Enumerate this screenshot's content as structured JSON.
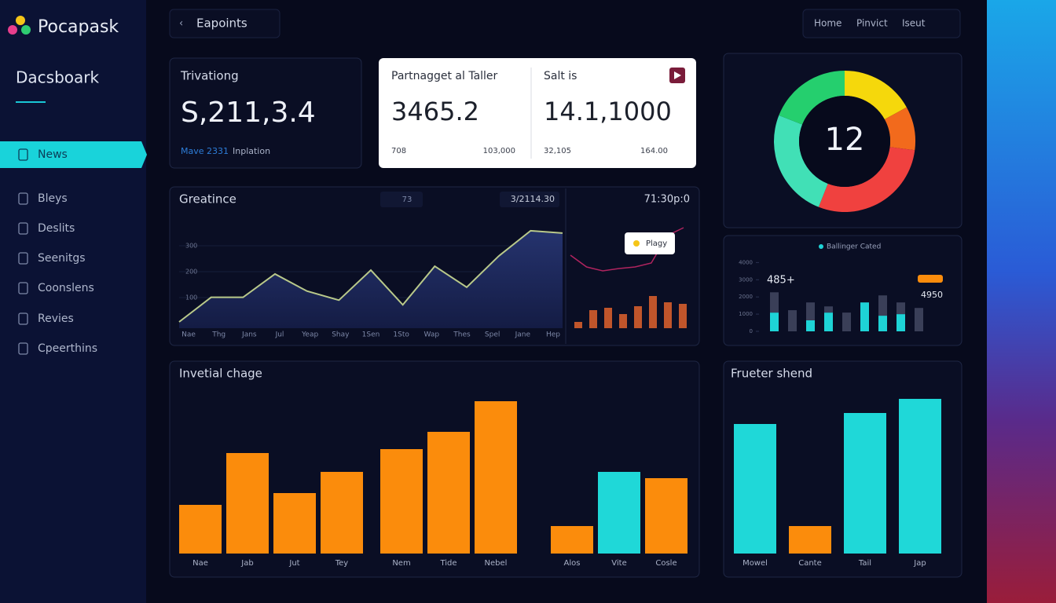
{
  "sidebar": {
    "brand": "Pocapask",
    "heading": "Dacsboark",
    "nav": [
      "News",
      "Bleys",
      "Deslits",
      "Seenitgs",
      "Coonslens",
      "Revies",
      "Cpeerthins"
    ]
  },
  "topbar": {
    "breadcrumb": "Eapoints",
    "links": [
      "Home",
      "Pinvict",
      "Iseut"
    ]
  },
  "stat_card": {
    "title": "Trivationg",
    "value": "S,211,3.4",
    "note": [
      "Mave 2331",
      "Inplation"
    ]
  },
  "kpis": [
    {
      "title": "Partnagget al Taller",
      "value": "3465.2",
      "foot": [
        "708",
        "103,000"
      ]
    },
    {
      "title": "Salt is",
      "value": "14.1,1000",
      "foot": [
        "32,105",
        "164.00"
      ]
    }
  ],
  "chart_data": [
    {
      "type": "donut",
      "center_label": "12",
      "values": [
        17,
        10,
        29,
        25,
        19
      ],
      "colors": [
        "#f5d80c",
        "#f26a1c",
        "#f0413f",
        "#41e0b6",
        "#25cf6e"
      ]
    },
    {
      "type": "area",
      "title": "Greatince",
      "badges": [
        "73",
        "3/2114.30"
      ],
      "categories": [
        "Nae",
        "Thg",
        "Jans",
        "Jul",
        "Yeap",
        "Shay",
        "1Sen",
        "1Sto",
        "Wap",
        "Thes",
        "Spel",
        "Jane",
        "Hep"
      ],
      "values": [
        6,
        101,
        101,
        191,
        125,
        90,
        206,
        72,
        221,
        140,
        260,
        358,
        349
      ],
      "ylim": [
        0,
        400
      ],
      "yticks": [
        100,
        200,
        300
      ],
      "color": "#b9c98a",
      "grid": true
    },
    {
      "type": "combo",
      "title": "71:30p:0",
      "tooltip": "Plagy",
      "values": [
        8,
        23,
        26,
        18,
        28,
        41,
        33,
        31
      ],
      "color": "#c0552b",
      "line_values": [
        93,
        78,
        73,
        76,
        78,
        83,
        118,
        128
      ],
      "line_color": "#b0245f"
    },
    {
      "type": "stacked_bar",
      "annotations": [
        "485+",
        "4950"
      ],
      "ylim": [
        0,
        4200
      ],
      "yticks": [
        0,
        1000,
        2000,
        3000,
        4000
      ],
      "series": [
        {
          "name": "Ballinger Cated",
          "color": "#1ed3d6",
          "values": [
            1090,
            0,
            640,
            1090,
            0,
            1680,
            910,
            1000,
            0
          ]
        },
        {
          "color": "#3a3f58",
          "values": [
            1180,
            1230,
            1040,
            360,
            1090,
            0,
            1180,
            680,
            1360
          ]
        }
      ]
    },
    {
      "type": "bar",
      "title": "Invetial chage",
      "categories": [
        "Nae",
        "Jab",
        "Jut",
        "Tey",
        "Nem",
        "Tide",
        "Nebel",
        "Alos",
        "Vite",
        "Cosle"
      ],
      "values": [
        62,
        128,
        77,
        104,
        133,
        155,
        194,
        35,
        104,
        96
      ],
      "colors": [
        "#fb8c0c",
        "#fb8c0c",
        "#fb8c0c",
        "#fb8c0c",
        "#fb8c0c",
        "#fb8c0c",
        "#fb8c0c",
        "#fb8c0c",
        "#1fd8d8",
        "#fb8c0c"
      ]
    },
    {
      "type": "bar",
      "title": "Frueter shend",
      "categories": [
        "Mowel",
        "Cante",
        "Tail",
        "Jap"
      ],
      "values": [
        165,
        35,
        179,
        197
      ],
      "colors": [
        "#1fd8d8",
        "#fb8c0c",
        "#1fd8d8",
        "#1fd8d8"
      ]
    }
  ]
}
